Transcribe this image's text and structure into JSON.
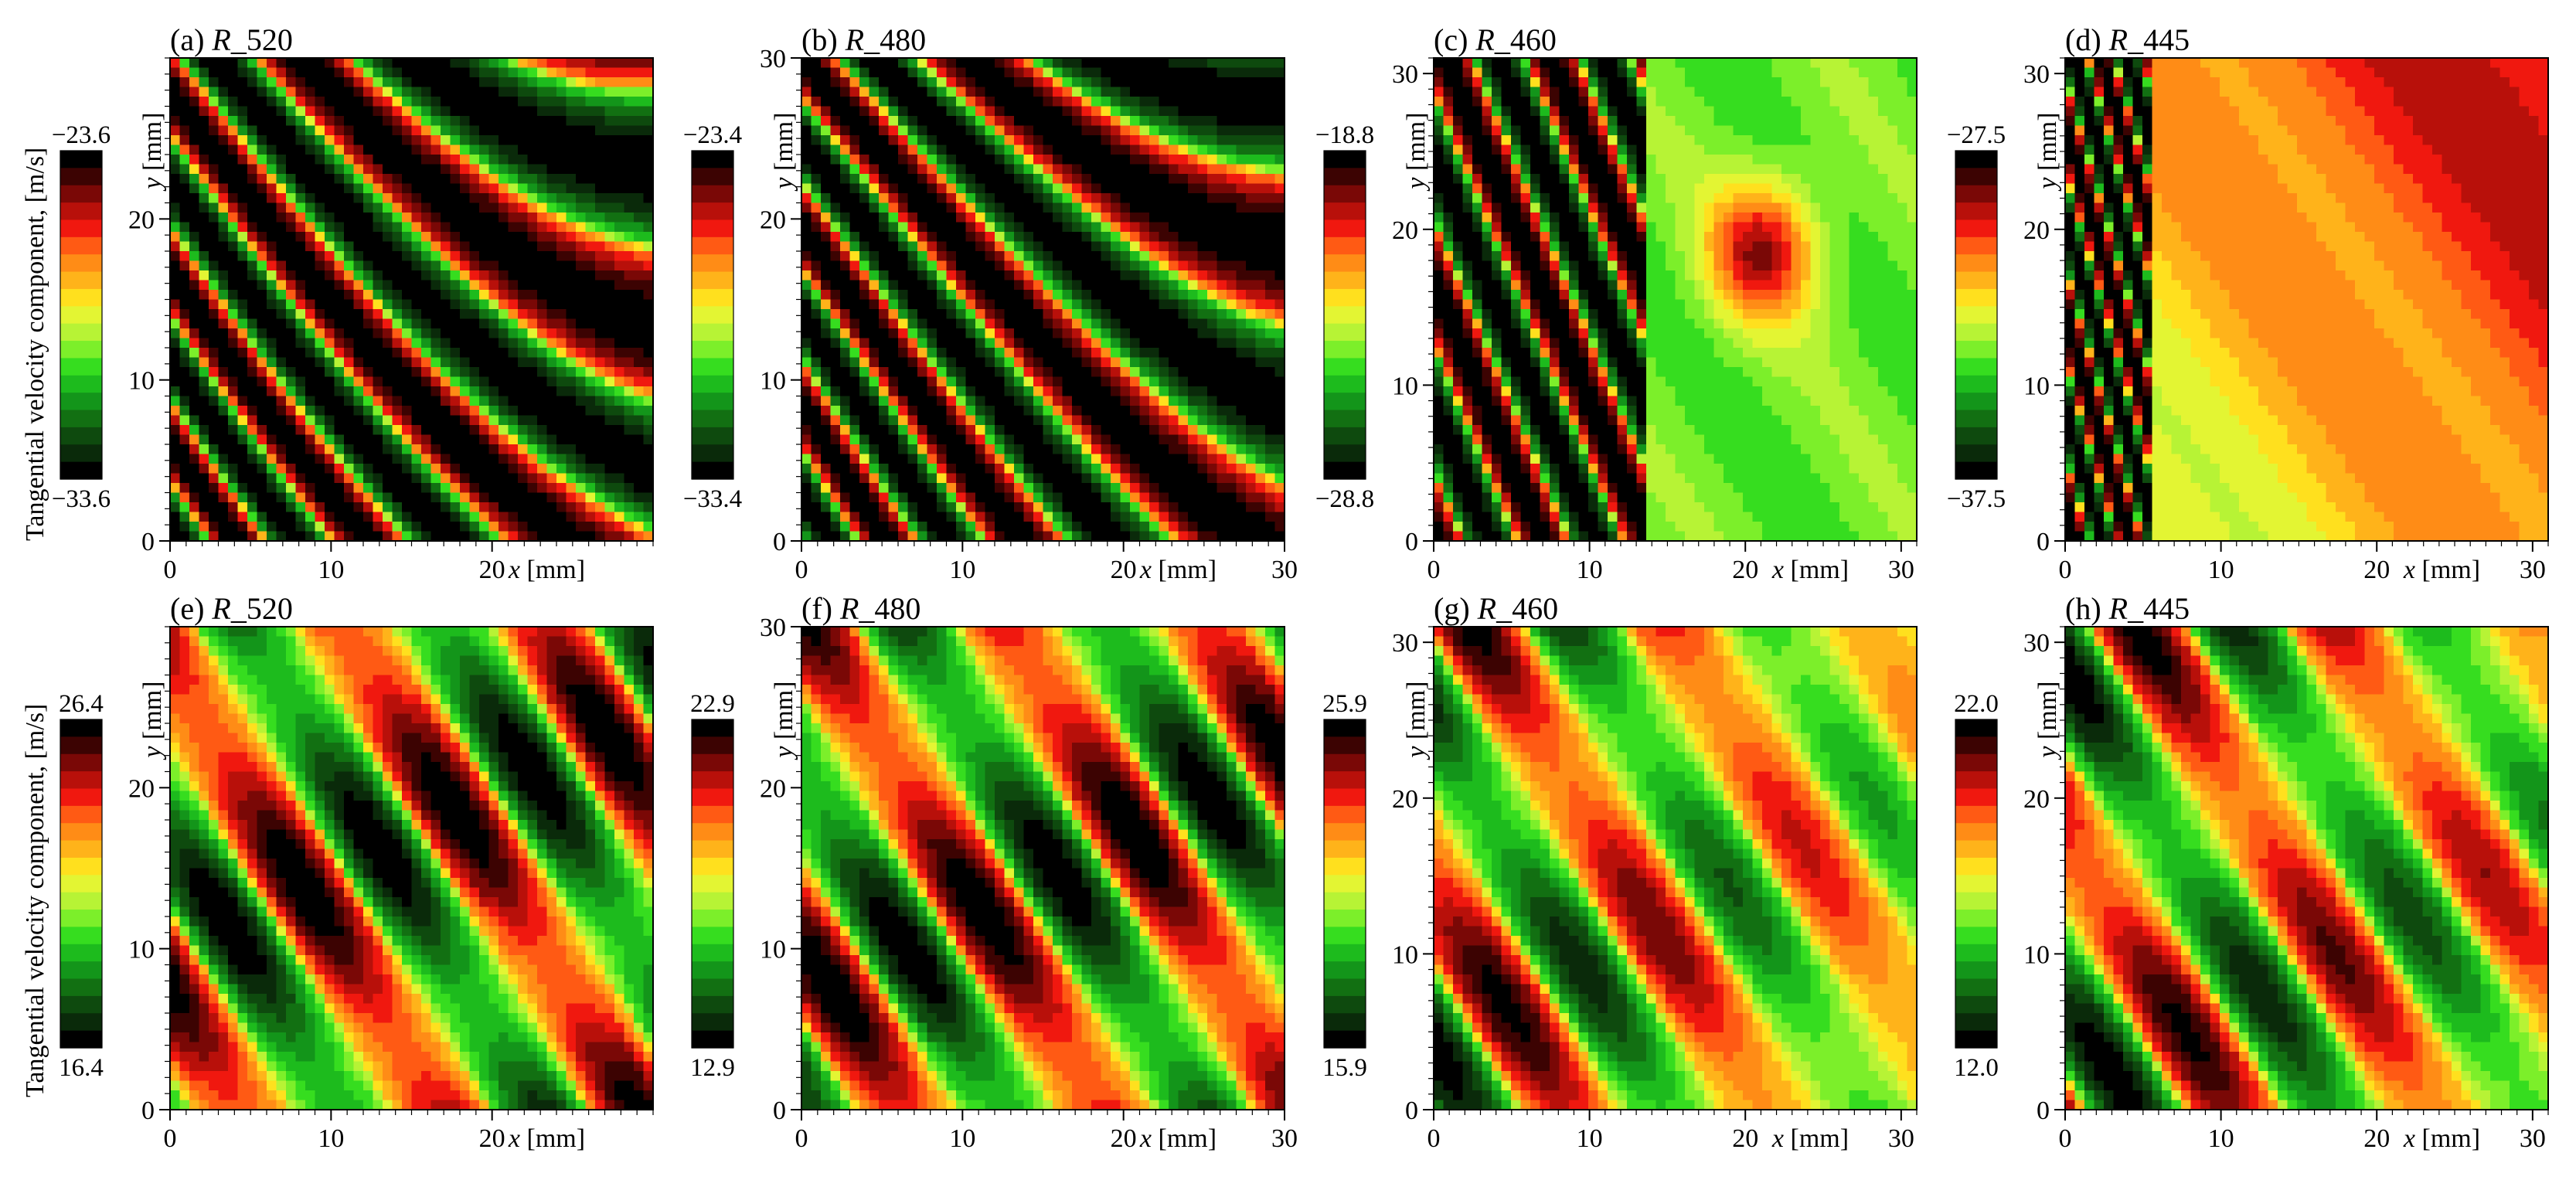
{
  "figure": {
    "ylabel_shared": "Tangential velocity component, [m/s]"
  },
  "chart_data": [
    {
      "type": "heatmap",
      "panel": "a",
      "title_prefix": "(a) ",
      "title_var": "R",
      "title_suffix": "_520",
      "xlabel_var": "x",
      "xlabel_unit": " [mm]",
      "ylabel_var": "y",
      "ylabel_unit": " [mm]",
      "xlim": [
        0,
        30
      ],
      "ylim": [
        0,
        30
      ],
      "xticks": [
        0,
        10,
        20
      ],
      "yticks": [
        0,
        10,
        20
      ],
      "colorbar": {
        "top": "−23.6",
        "bottom": "−33.6",
        "min": -33.6,
        "max": -23.6
      },
      "pattern": "stripes",
      "seed": 1
    },
    {
      "type": "heatmap",
      "panel": "b",
      "title_prefix": "(b) ",
      "title_var": "R",
      "title_suffix": "_480",
      "xlabel_var": "x",
      "xlabel_unit": " [mm]",
      "ylabel_var": "y",
      "ylabel_unit": " [mm]",
      "xlim": [
        0,
        30
      ],
      "ylim": [
        0,
        30
      ],
      "xticks": [
        0,
        10,
        20,
        30
      ],
      "yticks": [
        0,
        10,
        20,
        30
      ],
      "colorbar": {
        "top": "−23.4",
        "bottom": "−33.4",
        "min": -33.4,
        "max": -23.4
      },
      "pattern": "stripes",
      "seed": 2
    },
    {
      "type": "heatmap",
      "panel": "c",
      "title_prefix": "(c) ",
      "title_var": "R",
      "title_suffix": "_460",
      "xlabel_var": "x",
      "xlabel_unit": " [mm]",
      "ylabel_var": "y",
      "ylabel_unit": " [mm]",
      "xlim": [
        0,
        31
      ],
      "ylim": [
        0,
        31
      ],
      "xticks": [
        0,
        10,
        20,
        30
      ],
      "yticks": [
        0,
        10,
        20,
        30
      ],
      "colorbar": {
        "top": "−18.8",
        "bottom": "−28.8",
        "min": -28.8,
        "max": -18.8
      },
      "pattern": "blob",
      "seed": 3
    },
    {
      "type": "heatmap",
      "panel": "d",
      "title_prefix": "(d) ",
      "title_var": "R",
      "title_suffix": "_445",
      "xlabel_var": "x",
      "xlabel_unit": " [mm]",
      "ylabel_var": "y",
      "ylabel_unit": " [mm]",
      "xlim": [
        0,
        31
      ],
      "ylim": [
        0,
        31
      ],
      "xticks": [
        0,
        10,
        20,
        30
      ],
      "yticks": [
        0,
        10,
        20,
        30
      ],
      "colorbar": {
        "top": "−27.5",
        "bottom": "−37.5",
        "min": -37.5,
        "max": -27.5
      },
      "pattern": "warm",
      "seed": 4
    },
    {
      "type": "heatmap",
      "panel": "e",
      "title_prefix": "(e) ",
      "title_var": "R",
      "title_suffix": "_520",
      "xlabel_var": "x",
      "xlabel_unit": " [mm]",
      "ylabel_var": "y",
      "ylabel_unit": " [mm]",
      "xlim": [
        0,
        30
      ],
      "ylim": [
        0,
        30
      ],
      "xticks": [
        0,
        10,
        20
      ],
      "yticks": [
        0,
        10,
        20
      ],
      "colorbar": {
        "top": "26.4",
        "bottom": "16.4",
        "min": 16.4,
        "max": 26.4
      },
      "pattern": "waves",
      "seed": 5
    },
    {
      "type": "heatmap",
      "panel": "f",
      "title_prefix": "(f) ",
      "title_var": "R",
      "title_suffix": "_480",
      "xlabel_var": "x",
      "xlabel_unit": " [mm]",
      "ylabel_var": "y",
      "ylabel_unit": " [mm]",
      "xlim": [
        0,
        30
      ],
      "ylim": [
        0,
        30
      ],
      "xticks": [
        0,
        10,
        20,
        30
      ],
      "yticks": [
        0,
        10,
        20,
        30
      ],
      "colorbar": {
        "top": "22.9",
        "bottom": "12.9",
        "min": 12.9,
        "max": 22.9
      },
      "pattern": "waves",
      "seed": 6
    },
    {
      "type": "heatmap",
      "panel": "g",
      "title_prefix": "(g) ",
      "title_var": "R",
      "title_suffix": "_460",
      "xlabel_var": "x",
      "xlabel_unit": " [mm]",
      "ylabel_var": "y",
      "ylabel_unit": " [mm]",
      "xlim": [
        0,
        31
      ],
      "ylim": [
        0,
        31
      ],
      "xticks": [
        0,
        10,
        20,
        30
      ],
      "yticks": [
        0,
        10,
        20,
        30
      ],
      "colorbar": {
        "top": "25.9",
        "bottom": "15.9",
        "min": 15.9,
        "max": 25.9
      },
      "pattern": "waves2",
      "seed": 7
    },
    {
      "type": "heatmap",
      "panel": "h",
      "title_prefix": "(h) ",
      "title_var": "R",
      "title_suffix": "_445",
      "xlabel_var": "x",
      "xlabel_unit": " [mm]",
      "ylabel_var": "y",
      "ylabel_unit": " [mm]",
      "xlim": [
        0,
        31
      ],
      "ylim": [
        0,
        31
      ],
      "xticks": [
        0,
        10,
        20,
        30
      ],
      "yticks": [
        0,
        10,
        20,
        30
      ],
      "colorbar": {
        "top": "22.0",
        "bottom": "12.0",
        "min": 12.0,
        "max": 22.0
      },
      "pattern": "waves3",
      "seed": 8
    }
  ],
  "colormap": [
    "#000000",
    "#0a2a0a",
    "#0e4a0e",
    "#127012",
    "#13951a",
    "#1dbb1d",
    "#36dd1f",
    "#7cef2a",
    "#b7f335",
    "#e3f533",
    "#ffe01e",
    "#ffb31a",
    "#ff8c16",
    "#ff5a14",
    "#f0180f",
    "#b8100a",
    "#7a0806",
    "#3c0302",
    "#000000"
  ]
}
